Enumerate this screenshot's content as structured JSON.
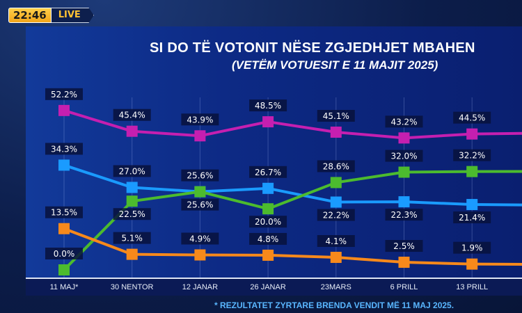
{
  "broadcast": {
    "time": "22:46",
    "live": "LIVE"
  },
  "footnote": "* REZULTATET ZYRTARE BRENDA VENDIT MË 11 MAJ 2025.",
  "chart_data": {
    "type": "line",
    "title": "SI DO TË VOTONIT NËSE ZGJEDHJET MBAHEN",
    "subtitle": "(VETËM VOTUESIT E 11 MAJIT 2025)",
    "xlabel": "",
    "ylabel": "",
    "categories": [
      "11 MAJ*",
      "30 NENTOR",
      "12 JANAR",
      "26 JANAR",
      "23MARS",
      "6 PRILL",
      "13 PRILL"
    ],
    "ylim": [
      0,
      55
    ],
    "grid": "vertical",
    "series": [
      {
        "name": "magenta",
        "color": "#c51fb0",
        "values": [
          52.2,
          45.4,
          43.9,
          48.5,
          45.1,
          43.2,
          44.5
        ],
        "labels": [
          "52.2%",
          "45.4%",
          "43.9%",
          "48.5%",
          "45.1%",
          "43.2%",
          "44.5%"
        ],
        "label_pos": [
          "above",
          "above",
          "above",
          "above",
          "above",
          "above",
          "above"
        ]
      },
      {
        "name": "blue",
        "color": "#1a9bff",
        "values": [
          34.3,
          27.0,
          25.6,
          26.7,
          22.2,
          22.3,
          21.4
        ],
        "labels": [
          "34.3%",
          "27.0%",
          "25.6%",
          "26.7%",
          "22.2%",
          "22.3%",
          "21.4%"
        ],
        "label_pos": [
          "above",
          "above",
          "above",
          "above",
          "below",
          "below",
          "below"
        ]
      },
      {
        "name": "green",
        "color": "#4cbb2e",
        "values": [
          0.0,
          22.5,
          25.6,
          20.0,
          28.6,
          32.0,
          32.2
        ],
        "labels": [
          "0.0%",
          "22.5%",
          "25.6%",
          "20.0%",
          "28.6%",
          "32.0%",
          "32.2%"
        ],
        "label_pos": [
          "above",
          "below",
          "below",
          "below",
          "above",
          "above",
          "above"
        ]
      },
      {
        "name": "orange",
        "color": "#f7891b",
        "values": [
          13.5,
          5.1,
          4.9,
          4.8,
          4.1,
          2.5,
          1.9
        ],
        "labels": [
          "13.5%",
          "5.1%",
          "4.9%",
          "4.8%",
          "4.1%",
          "2.5%",
          "1.9%"
        ],
        "label_pos": [
          "above",
          "above",
          "above",
          "above",
          "above",
          "above",
          "above"
        ]
      }
    ]
  }
}
